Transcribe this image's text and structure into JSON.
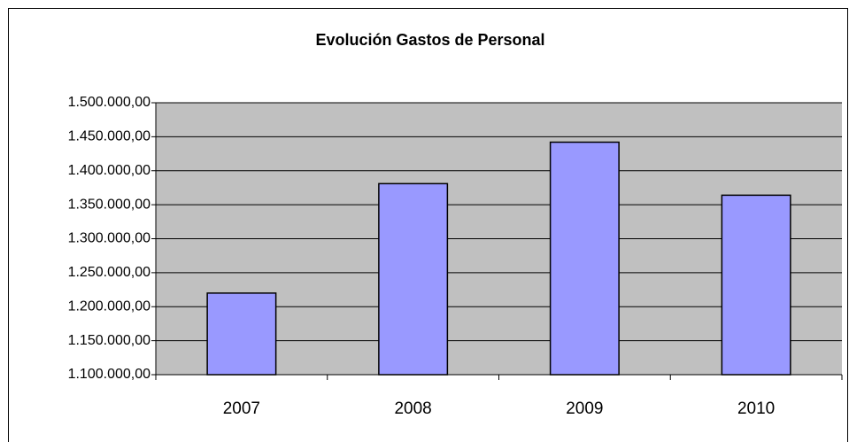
{
  "chart_data": {
    "type": "bar",
    "title": "Evolución Gastos de Personal",
    "categories": [
      "2007",
      "2008",
      "2009",
      "2010"
    ],
    "values": [
      1220000,
      1381000,
      1442000,
      1364000
    ],
    "color": "#9999ff",
    "ylim": [
      1100000,
      1500000
    ],
    "yticks": [
      {
        "value": 1100000,
        "label": "1.100.000,00"
      },
      {
        "value": 1150000,
        "label": "1.150.000,00"
      },
      {
        "value": 1200000,
        "label": "1.200.000,00"
      },
      {
        "value": 1250000,
        "label": "1.250.000,00"
      },
      {
        "value": 1300000,
        "label": "1.300.000,00"
      },
      {
        "value": 1350000,
        "label": "1.350.000,00"
      },
      {
        "value": 1400000,
        "label": "1.400.000,00"
      },
      {
        "value": 1450000,
        "label": "1.450.000,00"
      },
      {
        "value": 1500000,
        "label": "1.500.000,00"
      }
    ],
    "grid": true
  }
}
